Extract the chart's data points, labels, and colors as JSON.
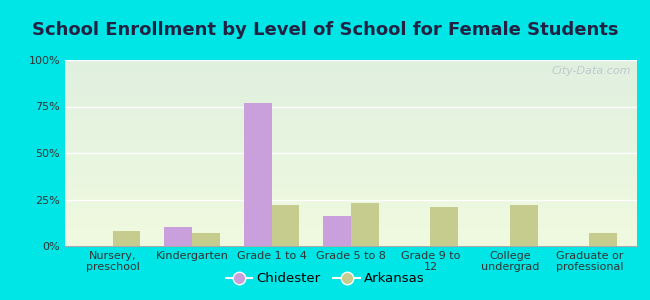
{
  "title": "School Enrollment by Level of School for Female Students",
  "categories": [
    "Nursery,\npreschool",
    "Kindergarten",
    "Grade 1 to 4",
    "Grade 5 to 8",
    "Grade 9 to\n12",
    "College\nundergrad",
    "Graduate or\nprofessional"
  ],
  "chidester": [
    0,
    10,
    77,
    16,
    0,
    0,
    0
  ],
  "arkansas": [
    8,
    7,
    22,
    23,
    21,
    22,
    7
  ],
  "chidester_color": "#c9a0dc",
  "arkansas_color": "#c5cc8e",
  "bar_width": 0.35,
  "ylim": [
    0,
    100
  ],
  "yticks": [
    0,
    25,
    50,
    75,
    100
  ],
  "ytick_labels": [
    "0%",
    "25%",
    "50%",
    "75%",
    "100%"
  ],
  "background_figure": "#00e5e5",
  "background_axes_top": "#e0f0e0",
  "background_axes_bottom": "#f0fadf",
  "grid_color": "#ffffff",
  "title_fontsize": 13,
  "tick_fontsize": 8,
  "legend_fontsize": 9.5,
  "watermark_text": "City-Data.com",
  "title_color": "#222244"
}
